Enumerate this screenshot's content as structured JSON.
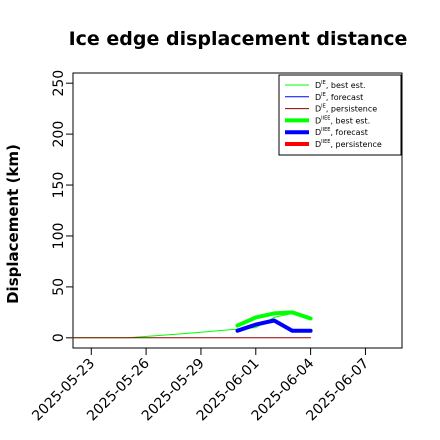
{
  "chart_data": {
    "type": "line",
    "title": "Ice edge displacement distance",
    "xlabel": "",
    "ylabel": "Displacement (km)",
    "ylim": [
      -10,
      260
    ],
    "xlim": [
      "2025-05-22",
      "2025-06-09"
    ],
    "yticks": [
      0,
      50,
      100,
      150,
      200,
      250
    ],
    "xticks": [
      {
        "date": "2025-05-23",
        "label": "2025-05-23",
        "color": "#000000"
      },
      {
        "date": "2025-05-26",
        "label": "2025-05-26",
        "color": "#000000"
      },
      {
        "date": "2025-05-29",
        "label": "2025-05-29",
        "color": "#228b22"
      },
      {
        "date": "2025-06-01",
        "label": "2025-06-01",
        "color": "#000000"
      },
      {
        "date": "2025-06-04",
        "label": "2025-06-04",
        "color": "#000000"
      },
      {
        "date": "2025-06-07",
        "label": "2025-06-07",
        "color": "#000000"
      }
    ],
    "grid": false,
    "legend_position": "top-right",
    "series": [
      {
        "name": "D",
        "sup": "IE",
        "suffix": ", best est.",
        "color": "#00ff00",
        "width": 1,
        "x": [
          "2025-05-22",
          "2025-05-25",
          "2025-05-28",
          "2025-06-01",
          "2025-06-02",
          "2025-06-03",
          "2025-06-04"
        ],
        "y": [
          0,
          0,
          4,
          10,
          20,
          24,
          19
        ]
      },
      {
        "name": "D",
        "sup": "IE",
        "suffix": ", forecast",
        "color": "#0000ff",
        "width": 1,
        "x": [],
        "y": []
      },
      {
        "name": "D",
        "sup": "IE",
        "suffix": ", persistence",
        "color": "#8b0000",
        "width": 1,
        "x": [
          "2025-05-22",
          "2025-06-04"
        ],
        "y": [
          0,
          0
        ]
      },
      {
        "name": "D",
        "sup": "IIEE",
        "suffix": ", best est.",
        "color": "#00ff00",
        "width": 4,
        "x": [
          "2025-05-31",
          "2025-06-01",
          "2025-06-02",
          "2025-06-03",
          "2025-06-04"
        ],
        "y": [
          12,
          20,
          24,
          25,
          19
        ]
      },
      {
        "name": "D",
        "sup": "IIEE",
        "suffix": ", forecast",
        "color": "#0000ff",
        "width": 4,
        "x": [
          "2025-05-31",
          "2025-06-01",
          "2025-06-02",
          "2025-06-03",
          "2025-06-04"
        ],
        "y": [
          7,
          13,
          17,
          7,
          7
        ]
      },
      {
        "name": "D",
        "sup": "IIEE",
        "suffix": ", persistence",
        "color": "#ff0000",
        "width": 4,
        "x": [],
        "y": []
      }
    ]
  }
}
